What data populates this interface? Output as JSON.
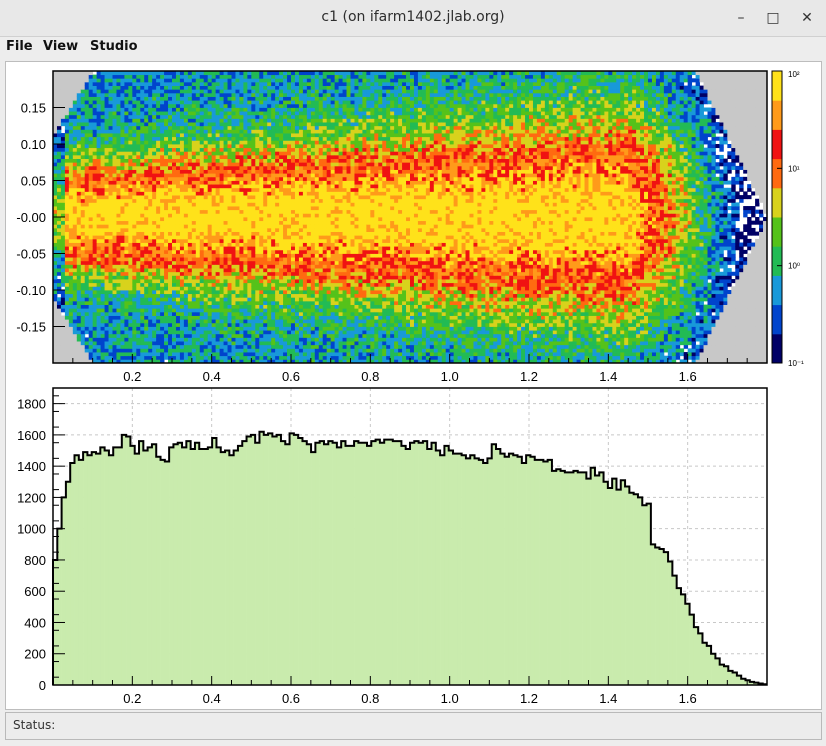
{
  "window": {
    "title": "c1 (on ifarm1402.jlab.org)",
    "minimize_glyph": "–",
    "maximize_glyph": "□",
    "close_glyph": "✕"
  },
  "menu": {
    "items": [
      "File",
      "View",
      "Studio"
    ]
  },
  "status": {
    "label": "Status:"
  },
  "colors": {
    "hist_fill": "#c9ebad",
    "hist_line": "#000000",
    "empty_bin": "#c8c8c8",
    "grid": "#c8c8c8"
  },
  "chart_data": [
    {
      "type": "heatmap",
      "title": "",
      "xlabel": "",
      "ylabel": "",
      "xlim": [
        0.0,
        1.8
      ],
      "ylim": [
        -0.2,
        0.2
      ],
      "x_ticks": [
        "0.2",
        "0.4",
        "0.6",
        "0.8",
        "1.0",
        "1.2",
        "1.4",
        "1.6"
      ],
      "y_ticks": [
        "0.15",
        "0.10",
        "0.05",
        "-0.00",
        "-0.05",
        "-0.10",
        "-0.15"
      ],
      "z_scale": "log",
      "z_ticks": [
        "10²",
        "10¹",
        "10⁰",
        "10⁻¹"
      ],
      "z_range": [
        0.1,
        100
      ],
      "palette": [
        "#000066",
        "#0044cc",
        "#1899d9",
        "#22bb55",
        "#55c21a",
        "#d8d21c",
        "#ff6a10",
        "#f01212",
        "#ff9a1a",
        "#ffe21a",
        "#fffff0"
      ],
      "description_values": {
        "core_center_y": 0.0,
        "core_half_width_at_x0": 0.05,
        "core_half_width_at_x1_6": 0.1,
        "peak_counts": 100
      }
    },
    {
      "type": "bar",
      "title": "",
      "xlabel": "",
      "ylabel": "",
      "xlim": [
        0.0,
        1.8
      ],
      "ylim": [
        0,
        1900
      ],
      "x_ticks": [
        "0.2",
        "0.4",
        "0.6",
        "0.8",
        "1.0",
        "1.2",
        "1.4",
        "1.6"
      ],
      "y_ticks": [
        "0",
        "200",
        "400",
        "600",
        "800",
        "1000",
        "1200",
        "1400",
        "1600",
        "1800"
      ],
      "grid": true,
      "bin_width": 0.02,
      "x_start": 0.0,
      "values": [
        800,
        1000,
        1200,
        1300,
        1420,
        1470,
        1440,
        1490,
        1470,
        1490,
        1480,
        1520,
        1500,
        1470,
        1520,
        1520,
        1600,
        1590,
        1530,
        1480,
        1560,
        1500,
        1520,
        1540,
        1460,
        1440,
        1430,
        1520,
        1540,
        1550,
        1520,
        1560,
        1510,
        1550,
        1510,
        1510,
        1520,
        1580,
        1520,
        1490,
        1500,
        1470,
        1500,
        1530,
        1560,
        1590,
        1600,
        1550,
        1620,
        1600,
        1610,
        1590,
        1600,
        1560,
        1540,
        1610,
        1600,
        1580,
        1560,
        1540,
        1490,
        1550,
        1560,
        1540,
        1560,
        1550,
        1520,
        1560,
        1530,
        1530,
        1560,
        1550,
        1550,
        1530,
        1560,
        1570,
        1550,
        1570,
        1570,
        1560,
        1560,
        1530,
        1510,
        1550,
        1560,
        1550,
        1560,
        1510,
        1550,
        1500,
        1470,
        1530,
        1500,
        1480,
        1480,
        1470,
        1450,
        1470,
        1450,
        1440,
        1420,
        1450,
        1540,
        1510,
        1480,
        1460,
        1480,
        1470,
        1460,
        1420,
        1470,
        1460,
        1440,
        1440,
        1430,
        1440,
        1370,
        1380,
        1370,
        1360,
        1360,
        1370,
        1360,
        1360,
        1320,
        1390,
        1340,
        1360,
        1300,
        1260,
        1320,
        1250,
        1310,
        1270,
        1230,
        1220,
        1200,
        1150,
        1160,
        900,
        880,
        870,
        850,
        790,
        700,
        620,
        580,
        520,
        450,
        370,
        330,
        270,
        250,
        200,
        170,
        130,
        120,
        90,
        80,
        60,
        40,
        30,
        20,
        15,
        10,
        5
      ]
    }
  ]
}
